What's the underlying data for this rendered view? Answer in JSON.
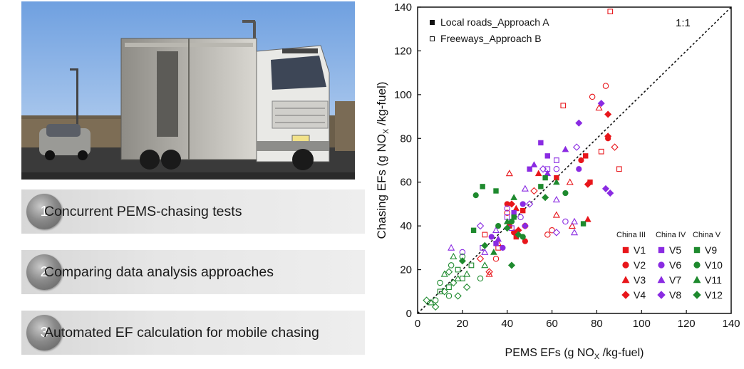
{
  "photo": {
    "alt": "truck-photo",
    "plate": "京"
  },
  "steps": [
    {
      "number": "1",
      "label": "Concurrent PEMS-chasing tests"
    },
    {
      "number": "2",
      "label": "Comparing data analysis approaches"
    },
    {
      "number": "3",
      "label": "Automated EF calculation for mobile chasing"
    }
  ],
  "chart_data": {
    "type": "scatter",
    "xlabel_main": "PEMS EFs (g NO",
    "xlabel_sub": "X",
    "xlabel_end": " /kg-fuel)",
    "ylabel_main": "Chasing EFs (g NO",
    "ylabel_sub": "X",
    "ylabel_end": " /kg-fuel)",
    "xlim": [
      0,
      140
    ],
    "ylim": [
      0,
      140
    ],
    "xticks": [
      "0",
      "20",
      "40",
      "60",
      "80",
      "100",
      "120",
      "140"
    ],
    "yticks": [
      "0",
      "20",
      "40",
      "60",
      "80",
      "100",
      "120",
      "140"
    ],
    "one_to_one_label": "1:1",
    "approach_legend": [
      {
        "label": "Local roads_Approach A",
        "fill": "filled"
      },
      {
        "label": "Freeways_Approach B",
        "fill": "open"
      }
    ],
    "vehicle_legend": {
      "groups": [
        "China III",
        "China IV",
        "China V"
      ],
      "entries": [
        {
          "name": "V1",
          "color": "#e8161b",
          "marker": "square"
        },
        {
          "name": "V2",
          "color": "#e8161b",
          "marker": "circle"
        },
        {
          "name": "V3",
          "color": "#e8161b",
          "marker": "triangle"
        },
        {
          "name": "V4",
          "color": "#e8161b",
          "marker": "diamond"
        },
        {
          "name": "V5",
          "color": "#8a2be2",
          "marker": "square"
        },
        {
          "name": "V6",
          "color": "#8a2be2",
          "marker": "circle"
        },
        {
          "name": "V7",
          "color": "#8a2be2",
          "marker": "triangle"
        },
        {
          "name": "V8",
          "color": "#8a2be2",
          "marker": "diamond"
        },
        {
          "name": "V9",
          "color": "#1e8a2e",
          "marker": "square"
        },
        {
          "name": "V10",
          "color": "#1e8a2e",
          "marker": "circle"
        },
        {
          "name": "V11",
          "color": "#1e8a2e",
          "marker": "triangle"
        },
        {
          "name": "V12",
          "color": "#1e8a2e",
          "marker": "diamond"
        }
      ]
    },
    "series": [
      {
        "name": "V1",
        "filled": [
          [
            41,
            40
          ],
          [
            47,
            47
          ],
          [
            75,
            72
          ],
          [
            77,
            60
          ],
          [
            62,
            62
          ],
          [
            44,
            35
          ]
        ],
        "open": [
          [
            36,
            30
          ],
          [
            65,
            95
          ],
          [
            86,
            138
          ],
          [
            82,
            74
          ],
          [
            30,
            36
          ],
          [
            90,
            66
          ]
        ]
      },
      {
        "name": "V2",
        "filled": [
          [
            85,
            80
          ],
          [
            43,
            37
          ],
          [
            40,
            50
          ],
          [
            73,
            70
          ],
          [
            48,
            33
          ]
        ],
        "open": [
          [
            78,
            99
          ],
          [
            84,
            104
          ],
          [
            60,
            38
          ],
          [
            35,
            25
          ],
          [
            40,
            46
          ],
          [
            58,
            36
          ],
          [
            48,
            40
          ]
        ]
      },
      {
        "name": "V3",
        "filled": [
          [
            76,
            43
          ],
          [
            44,
            48
          ],
          [
            54,
            64
          ]
        ],
        "open": [
          [
            81,
            94
          ],
          [
            69,
            40
          ],
          [
            32,
            18
          ],
          [
            41,
            64
          ],
          [
            62,
            45
          ],
          [
            36,
            32
          ],
          [
            68,
            60
          ]
        ]
      },
      {
        "name": "V4",
        "filled": [
          [
            85,
            91
          ],
          [
            85,
            81
          ],
          [
            76,
            59
          ],
          [
            42,
            50
          ],
          [
            45,
            38
          ]
        ],
        "open": [
          [
            88,
            76
          ],
          [
            32,
            19
          ],
          [
            52,
            56
          ],
          [
            28,
            25
          ]
        ]
      },
      {
        "name": "V5",
        "filled": [
          [
            50,
            66
          ],
          [
            55,
            78
          ],
          [
            43,
            46
          ],
          [
            35,
            32
          ],
          [
            58,
            72
          ]
        ],
        "open": [
          [
            42,
            39
          ],
          [
            29,
            30
          ],
          [
            62,
            70
          ],
          [
            58,
            66
          ],
          [
            40,
            44
          ]
        ]
      },
      {
        "name": "V6",
        "filled": [
          [
            72,
            66
          ],
          [
            47,
            50
          ],
          [
            33,
            35
          ],
          [
            38,
            30
          ]
        ],
        "open": [
          [
            66,
            42
          ],
          [
            20,
            28
          ],
          [
            62,
            66
          ],
          [
            40,
            48
          ],
          [
            46,
            44
          ]
        ]
      },
      {
        "name": "V7",
        "filled": [
          [
            66,
            75
          ],
          [
            52,
            68
          ],
          [
            36,
            34
          ],
          [
            58,
            64
          ]
        ],
        "open": [
          [
            15,
            30
          ],
          [
            70,
            42
          ],
          [
            30,
            28
          ],
          [
            35,
            38
          ],
          [
            62,
            52
          ],
          [
            48,
            57
          ],
          [
            70,
            37
          ]
        ]
      },
      {
        "name": "V8",
        "filled": [
          [
            84,
            57
          ],
          [
            86,
            55
          ],
          [
            72,
            87
          ],
          [
            82,
            96
          ],
          [
            48,
            40
          ]
        ],
        "open": [
          [
            62,
            37
          ],
          [
            71,
            76
          ],
          [
            28,
            40
          ],
          [
            50,
            50
          ],
          [
            56,
            66
          ]
        ]
      },
      {
        "name": "V9",
        "filled": [
          [
            35,
            56
          ],
          [
            57,
            62
          ],
          [
            43,
            44
          ],
          [
            29,
            58
          ],
          [
            55,
            58
          ],
          [
            74,
            41
          ],
          [
            25,
            38
          ]
        ],
        "open": [
          [
            20,
            16
          ],
          [
            14,
            12
          ],
          [
            10,
            10
          ],
          [
            18,
            20
          ],
          [
            24,
            22
          ]
        ]
      },
      {
        "name": "V10",
        "filled": [
          [
            26,
            54
          ],
          [
            47,
            35
          ],
          [
            66,
            55
          ],
          [
            42,
            42
          ],
          [
            36,
            40
          ]
        ],
        "open": [
          [
            8,
            6
          ],
          [
            15,
            22
          ],
          [
            20,
            26
          ],
          [
            10,
            14
          ],
          [
            28,
            16
          ],
          [
            14,
            8
          ]
        ]
      },
      {
        "name": "V11",
        "filled": [
          [
            43,
            53
          ],
          [
            62,
            60
          ],
          [
            40,
            42
          ],
          [
            34,
            28
          ]
        ],
        "open": [
          [
            12,
            18
          ],
          [
            18,
            16
          ],
          [
            6,
            5
          ],
          [
            22,
            18
          ],
          [
            16,
            26
          ],
          [
            30,
            22
          ]
        ]
      },
      {
        "name": "V12",
        "filled": [
          [
            42,
            22
          ],
          [
            57,
            53
          ],
          [
            45,
            36
          ],
          [
            30,
            31
          ],
          [
            20,
            24
          ],
          [
            40,
            39
          ]
        ],
        "open": [
          [
            4,
            6
          ],
          [
            16,
            14
          ],
          [
            14,
            19
          ],
          [
            8,
            3
          ],
          [
            12,
            10
          ],
          [
            18,
            8
          ],
          [
            22,
            12
          ]
        ]
      }
    ]
  }
}
